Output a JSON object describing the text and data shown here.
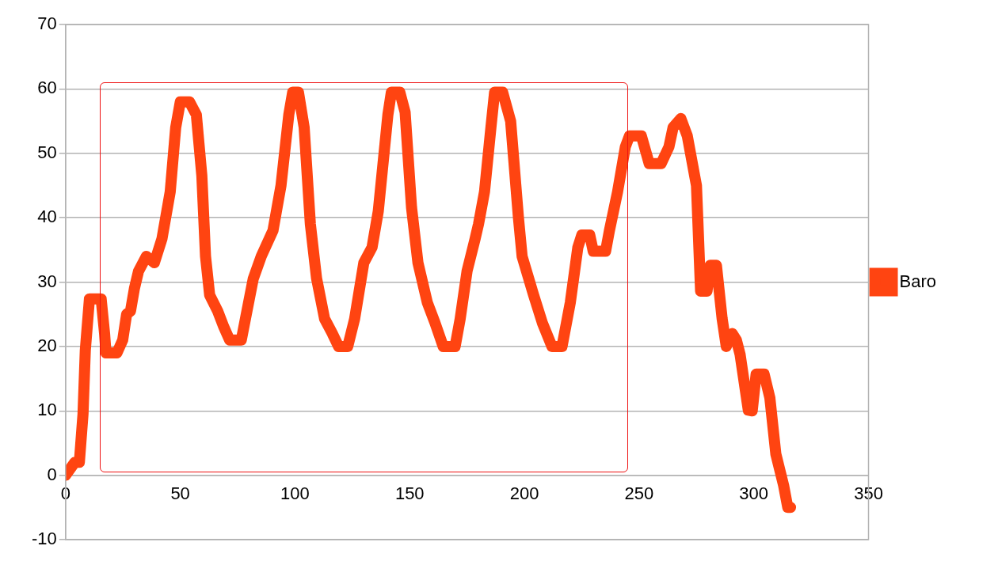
{
  "chart_data": {
    "type": "line",
    "xlim": [
      0,
      350
    ],
    "xticks": [
      0,
      50,
      100,
      150,
      200,
      250,
      300,
      350
    ],
    "ylim": [
      -10,
      70
    ],
    "yticks": [
      -10,
      0,
      10,
      20,
      30,
      40,
      50,
      60,
      70
    ],
    "grid": "y",
    "legend": "right",
    "marker": "none",
    "line_style": "solid",
    "series": [
      {
        "name": "Baro",
        "color": "#ff4411",
        "x": [
          0,
          4,
          6,
          7.6,
          8.6,
          10.4,
          15.5,
          17,
          17.6,
          22.4,
          24.9,
          26.6,
          28.3,
          30,
          31.8,
          35.2,
          38.7,
          42,
          45.6,
          48,
          50,
          54,
          57,
          59.4,
          61,
          62.8,
          66.3,
          69,
          71.5,
          76.6,
          78.4,
          81.8,
          85.3,
          90.4,
          93.9,
          97.3,
          99,
          101.5,
          104,
          106.7,
          109.4,
          112.9,
          116.3,
          119,
          123,
          126,
          130,
          133.6,
          136.3,
          140.5,
          142,
          145.7,
          148,
          150.8,
          153.6,
          157.7,
          161,
          164.6,
          169.8,
          172,
          175,
          178.5,
          180,
          182.6,
          185.4,
          187,
          190.5,
          194,
          197.4,
          199,
          204,
          207.8,
          212,
          216.4,
          220,
          223.3,
          225,
          228.5,
          230,
          235.4,
          237,
          240.6,
          244,
          245.8,
          251,
          254.4,
          259.6,
          263,
          264.8,
          268.2,
          271,
          275,
          276.8,
          279.6,
          281,
          283.7,
          286.2,
          288,
          290.6,
          292.4,
          294,
          297.6,
          299.3,
          301,
          304.5,
          307,
          309.6,
          313,
          314.8,
          316
        ],
        "values": [
          0,
          2,
          2,
          9.5,
          19.4,
          27.4,
          27.4,
          22,
          19,
          19,
          21,
          25,
          25.5,
          29,
          31.7,
          34,
          33,
          36.7,
          44,
          54,
          58,
          58,
          56,
          46.5,
          34,
          28,
          25.5,
          23,
          21,
          21,
          24.3,
          30.5,
          34,
          38,
          45,
          56,
          59.5,
          59.5,
          54,
          39,
          30.6,
          24.3,
          22,
          20,
          20,
          24.3,
          33,
          35.4,
          41,
          56,
          59.5,
          59.5,
          56.4,
          41.6,
          33,
          26.8,
          23.7,
          20,
          20,
          24.3,
          31.7,
          36.7,
          39,
          44,
          54,
          59.5,
          59.5,
          55,
          40,
          34,
          28,
          23.7,
          20,
          20,
          26.8,
          35.4,
          37.3,
          37.3,
          34.8,
          34.8,
          37.9,
          44,
          51,
          52.7,
          52.7,
          48.4,
          48.4,
          51,
          54,
          55.4,
          52.7,
          45,
          28.6,
          28.6,
          32.6,
          32.6,
          24.3,
          20,
          22,
          21,
          18.8,
          10.1,
          10,
          15.7,
          15.7,
          12,
          3.3,
          -1.6,
          -5,
          -5
        ]
      }
    ]
  }
}
